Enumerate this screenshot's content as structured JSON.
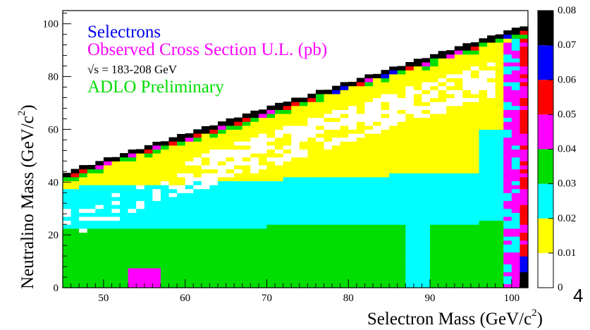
{
  "chart_data": {
    "type": "heatmap",
    "xlabel": "Selectron Mass (GeV/c",
    "xlabel_sup": "2",
    "xlabel_close": ")",
    "ylabel": "Neutralino Mass (GeV/c",
    "ylabel_sup": "2",
    "ylabel_close": ")",
    "xlim": [
      45,
      102
    ],
    "ylim": [
      0,
      105
    ],
    "x_ticks": [
      "50",
      "60",
      "70",
      "80",
      "90",
      "100"
    ],
    "y_ticks": [
      "0",
      "20",
      "40",
      "60",
      "80",
      "100"
    ],
    "colorbar": {
      "range": [
        0,
        0.08
      ],
      "tick_labels": [
        "0",
        "0.01",
        "0.02",
        "0.03",
        "0.04",
        "0.05",
        "0.06",
        "0.07",
        "0.08"
      ],
      "colors": [
        "#ffffff",
        "#ffff00",
        "#00ffff",
        "#00dd00",
        "#ff00ff",
        "#ff0000",
        "#0000ff",
        "#000000"
      ]
    },
    "annotations": [
      {
        "text": "Selectrons",
        "color": "#0000ee"
      },
      {
        "text": "Observed Cross Section U.L. (pb)",
        "color": "#ff00ff"
      },
      {
        "text": "√s = 183-208 GeV",
        "color": "#000000"
      },
      {
        "text": "ADLO Preliminary",
        "color": "#00dd00"
      }
    ],
    "boundary": {
      "x": [
        45,
        102
      ],
      "y": [
        43,
        99
      ]
    },
    "regions": [
      {
        "name": "green band (0.03-0.04)",
        "value": 0.035,
        "y_range": [
          0,
          24
        ]
      },
      {
        "name": "cyan band (0.02-0.03)",
        "value": 0.025,
        "y_range": [
          24,
          38
        ]
      },
      {
        "name": "yellow band (0.01-0.02)",
        "value": 0.015,
        "y_range": [
          38,
          80
        ]
      },
      {
        "name": "white band (0-0.01)",
        "value": 0.005,
        "y_range": [
          62,
          86
        ]
      },
      {
        "name": "high edge at kinematic limit",
        "value": 0.08,
        "x_range": [
          100,
          102
        ]
      }
    ]
  },
  "corner_label": "4"
}
